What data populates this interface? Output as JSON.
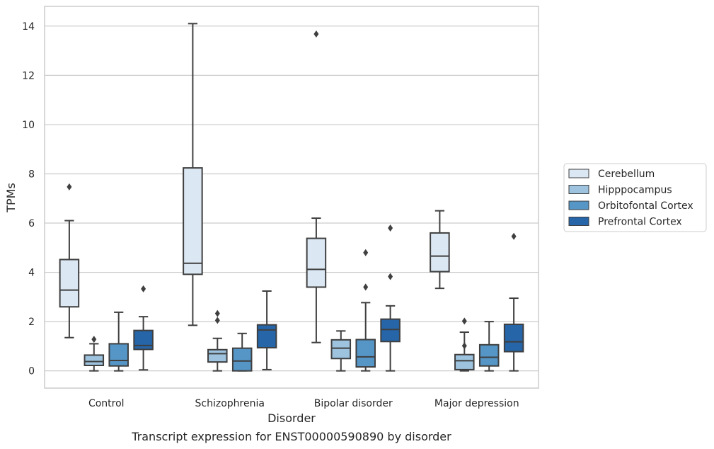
{
  "chart_data": {
    "type": "box",
    "caption": "Transcript expression for ENST00000590890 by disorder",
    "xlabel": "Disorder",
    "ylabel": "TPMs",
    "ylim": [
      -0.7,
      14.8
    ],
    "yticks": [
      0,
      2,
      4,
      6,
      8,
      10,
      12,
      14
    ],
    "grid": true,
    "legend_position": "right",
    "categories": [
      "Control",
      "Schizophrenia",
      "Bipolar disorder",
      "Major depression"
    ],
    "series": [
      {
        "name": "Cerebellum",
        "color": "#dbe8f4",
        "boxes": [
          {
            "whisker_low": 1.35,
            "q1": 2.6,
            "median": 3.28,
            "q3": 4.52,
            "whisker_high": 6.1,
            "outliers": [
              7.47
            ]
          },
          {
            "whisker_low": 1.85,
            "q1": 3.92,
            "median": 4.37,
            "q3": 8.24,
            "whisker_high": 14.1,
            "outliers": []
          },
          {
            "whisker_low": 1.15,
            "q1": 3.4,
            "median": 4.12,
            "q3": 5.38,
            "whisker_high": 6.2,
            "outliers": [
              13.68
            ]
          },
          {
            "whisker_low": 3.35,
            "q1": 4.03,
            "median": 4.66,
            "q3": 5.6,
            "whisker_high": 6.5,
            "outliers": []
          }
        ]
      },
      {
        "name": "Hipppocampus",
        "color": "#9dc3de",
        "boxes": [
          {
            "whisker_low": 0.0,
            "q1": 0.22,
            "median": 0.38,
            "q3": 0.64,
            "whisker_high": 1.1,
            "outliers": [
              1.28
            ]
          },
          {
            "whisker_low": 0.0,
            "q1": 0.36,
            "median": 0.7,
            "q3": 0.86,
            "whisker_high": 1.32,
            "outliers": [
              2.05,
              2.33
            ]
          },
          {
            "whisker_low": 0.0,
            "q1": 0.5,
            "median": 0.92,
            "q3": 1.26,
            "whisker_high": 1.62,
            "outliers": []
          },
          {
            "whisker_low": 0.0,
            "q1": 0.05,
            "median": 0.41,
            "q3": 0.66,
            "whisker_high": 1.57,
            "outliers": [
              1.02,
              2.02
            ]
          }
        ]
      },
      {
        "name": "Orbitofontal Cortex",
        "color": "#5596c7",
        "boxes": [
          {
            "whisker_low": 0.0,
            "q1": 0.2,
            "median": 0.42,
            "q3": 1.1,
            "whisker_high": 2.38,
            "outliers": []
          },
          {
            "whisker_low": 0.0,
            "q1": 0.0,
            "median": 0.4,
            "q3": 0.92,
            "whisker_high": 1.52,
            "outliers": []
          },
          {
            "whisker_low": 0.0,
            "q1": 0.16,
            "median": 0.57,
            "q3": 1.27,
            "whisker_high": 2.77,
            "outliers": [
              3.4,
              4.8
            ]
          },
          {
            "whisker_low": 0.0,
            "q1": 0.2,
            "median": 0.55,
            "q3": 1.06,
            "whisker_high": 2.0,
            "outliers": []
          }
        ]
      },
      {
        "name": "Prefrontal Cortex",
        "color": "#2565a8",
        "boxes": [
          {
            "whisker_low": 0.04,
            "q1": 0.87,
            "median": 1.03,
            "q3": 1.64,
            "whisker_high": 2.2,
            "outliers": [
              3.33
            ]
          },
          {
            "whisker_low": 0.05,
            "q1": 0.94,
            "median": 1.66,
            "q3": 1.87,
            "whisker_high": 3.24,
            "outliers": []
          },
          {
            "whisker_low": 0.0,
            "q1": 1.19,
            "median": 1.68,
            "q3": 2.1,
            "whisker_high": 2.64,
            "outliers": [
              3.83,
              5.8
            ]
          },
          {
            "whisker_low": 0.0,
            "q1": 0.78,
            "median": 1.18,
            "q3": 1.89,
            "whisker_high": 2.95,
            "outliers": [
              5.46
            ]
          }
        ]
      }
    ]
  }
}
